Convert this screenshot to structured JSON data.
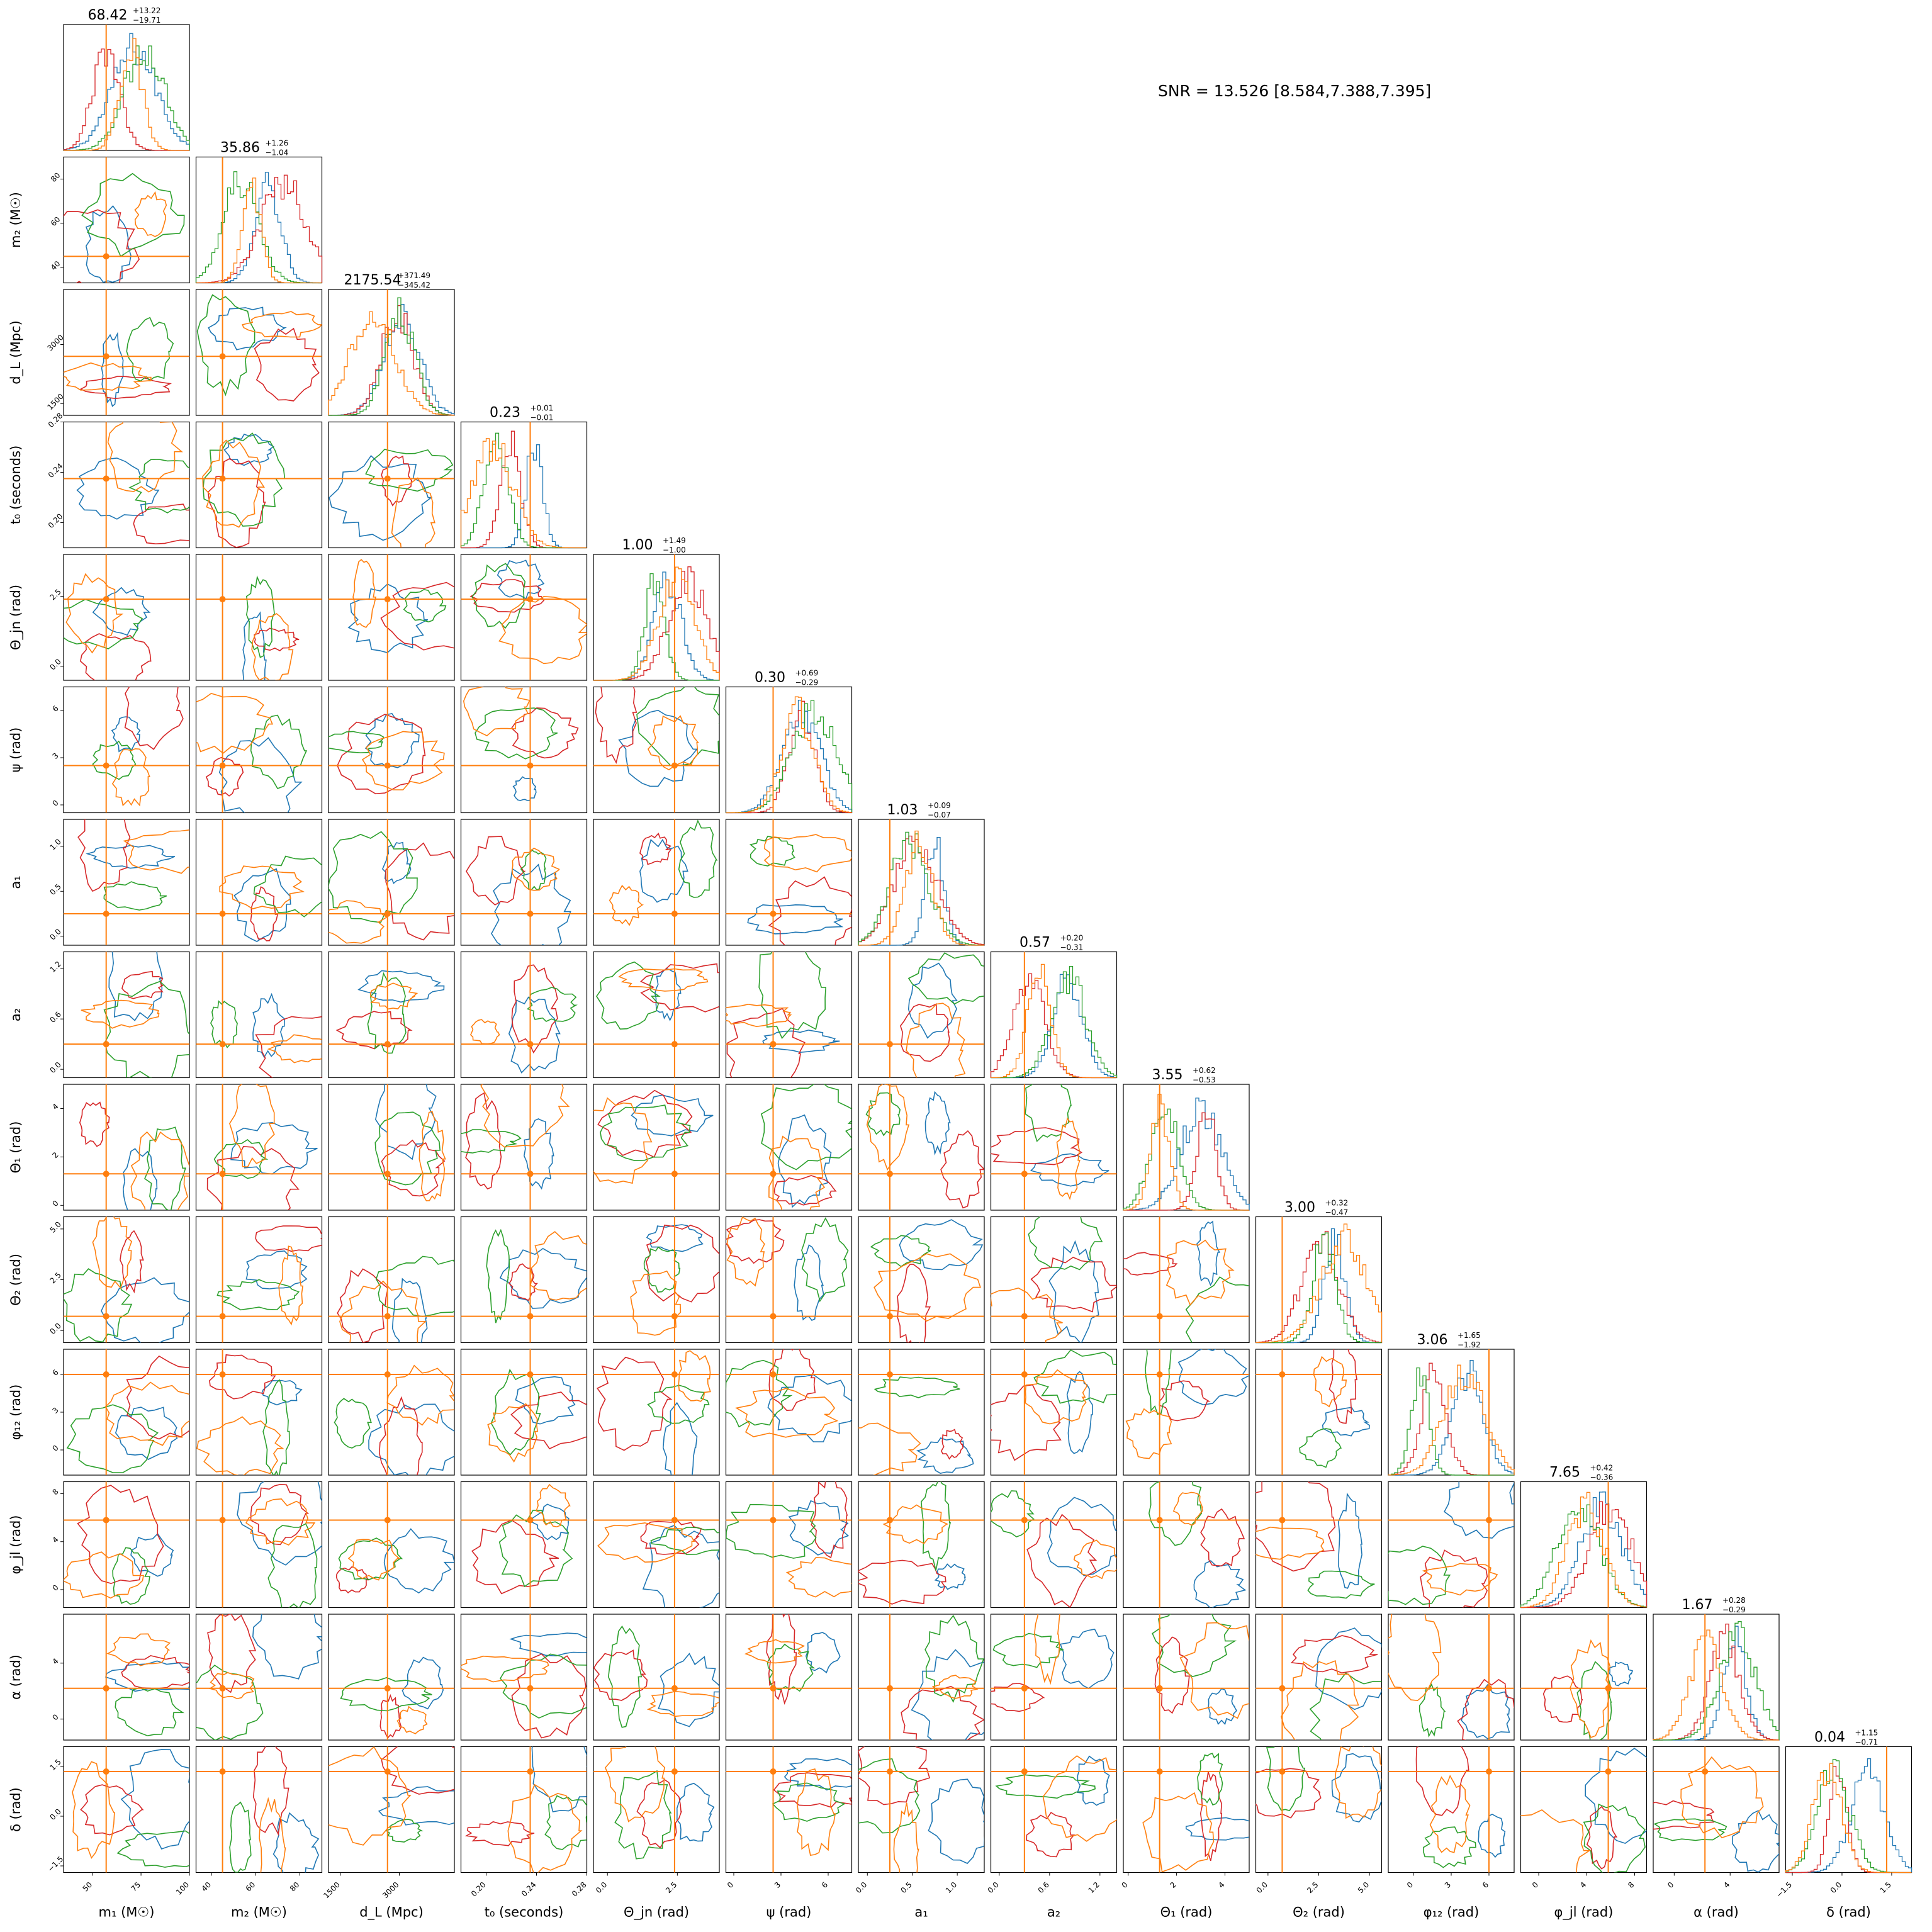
{
  "chart_data": {
    "type": "corner",
    "snr_text": "SNR = 13.526 [8.584,7.388,7.395]",
    "series_colors": [
      "#1f77b4",
      "#d62728",
      "#2ca02c",
      "#ff7f0e"
    ],
    "truth_color": "#ff7f0e",
    "parameters": [
      {
        "key": "m1",
        "label": "m₁ (M☉)",
        "range": [
          35,
          100
        ],
        "ticks": [
          50,
          75,
          100
        ],
        "ticklabels": [
          "50",
          "75",
          "100"
        ],
        "truth": 57,
        "title_value": "68.42",
        "title_plus": "+13.22",
        "title_minus": "−19.71"
      },
      {
        "key": "m2",
        "label": "m₂ (M☉)",
        "range": [
          33,
          90
        ],
        "ticks": [
          40,
          60,
          80
        ],
        "ticklabels": [
          "40",
          "60",
          "80"
        ],
        "truth": 45,
        "title_value": "35.86",
        "title_plus": "+1.26",
        "title_minus": "−1.04"
      },
      {
        "key": "dL",
        "label": "d_L (Mpc)",
        "range": [
          1200,
          4400
        ],
        "ticks": [
          1500,
          3000
        ],
        "ticklabels": [
          "1500",
          "3000"
        ],
        "truth": 2700,
        "title_value": "2175.54",
        "title_plus": "+371.49",
        "title_minus": "−345.42"
      },
      {
        "key": "t0",
        "label": "t₀ (seconds)",
        "range": [
          0.18,
          0.28
        ],
        "ticks": [
          0.2,
          0.24,
          0.28
        ],
        "ticklabels": [
          "0.20",
          "0.24",
          "0.28"
        ],
        "truth": 0.235,
        "title_value": "0.23",
        "title_plus": "+0.01",
        "title_minus": "−0.01"
      },
      {
        "key": "thetajn",
        "label": "Θ_jn (rad)",
        "range": [
          -0.5,
          4.0
        ],
        "ticks": [
          0.0,
          2.5
        ],
        "ticklabels": [
          "0.0",
          "2.5"
        ],
        "truth": 2.4,
        "title_value": "1.00",
        "title_plus": "+1.49",
        "title_minus": "−1.00"
      },
      {
        "key": "psi",
        "label": "ψ (rad)",
        "range": [
          -0.5,
          7.5
        ],
        "ticks": [
          0,
          3,
          6
        ],
        "ticklabels": [
          "0",
          "3",
          "6"
        ],
        "truth": 2.5,
        "title_value": "0.30",
        "title_plus": "+0.69",
        "title_minus": "−0.29"
      },
      {
        "key": "a1",
        "label": "a₁",
        "range": [
          -0.1,
          1.3
        ],
        "ticks": [
          0.0,
          0.5,
          1.0
        ],
        "ticklabels": [
          "0.0",
          "0.5",
          "1.0"
        ],
        "truth": 0.25,
        "title_value": "1.03",
        "title_plus": "+0.09",
        "title_minus": "−0.07"
      },
      {
        "key": "a2",
        "label": "a₂",
        "range": [
          -0.1,
          1.4
        ],
        "ticks": [
          0.0,
          0.6,
          1.2
        ],
        "ticklabels": [
          "0.0",
          "0.6",
          "1.2"
        ],
        "truth": 0.3,
        "title_value": "0.57",
        "title_plus": "+0.20",
        "title_minus": "−0.31"
      },
      {
        "key": "theta1",
        "label": "Θ₁ (rad)",
        "range": [
          -0.2,
          5.0
        ],
        "ticks": [
          0,
          2,
          4
        ],
        "ticklabels": [
          "0",
          "2",
          "4"
        ],
        "truth": 1.3,
        "title_value": "3.55",
        "title_plus": "+0.62",
        "title_minus": "−0.53"
      },
      {
        "key": "theta2",
        "label": "Θ₂ (rad)",
        "range": [
          -0.6,
          5.6
        ],
        "ticks": [
          0.0,
          2.5,
          5.0
        ],
        "ticklabels": [
          "0.0",
          "2.5",
          "5.0"
        ],
        "truth": 0.7,
        "title_value": "3.00",
        "title_plus": "+0.32",
        "title_minus": "−0.47"
      },
      {
        "key": "phi12",
        "label": "φ₁₂ (rad)",
        "range": [
          -2,
          8
        ],
        "ticks": [
          0,
          3,
          6
        ],
        "ticklabels": [
          "0",
          "3",
          "6"
        ],
        "truth": 6.0,
        "title_value": "3.06",
        "title_plus": "+1.65",
        "title_minus": "−1.92"
      },
      {
        "key": "phijl",
        "label": "φ_jl (rad)",
        "range": [
          -1.5,
          9
        ],
        "ticks": [
          0,
          4,
          8
        ],
        "ticklabels": [
          "0",
          "4",
          "8"
        ],
        "truth": 5.8,
        "title_value": "7.65",
        "title_plus": "+0.42",
        "title_minus": "−0.36"
      },
      {
        "key": "alpha",
        "label": "α (rad)",
        "range": [
          -1.5,
          7.5
        ],
        "ticks": [
          0,
          4
        ],
        "ticklabels": [
          "0",
          "4"
        ],
        "truth": 2.2,
        "title_value": "1.67",
        "title_plus": "+0.28",
        "title_minus": "−0.29"
      },
      {
        "key": "delta",
        "label": "δ (rad)",
        "range": [
          -1.7,
          2.1
        ],
        "ticks": [
          -1.5,
          0.0,
          1.5
        ],
        "ticklabels": [
          "−1.5",
          "0.0",
          "1.5"
        ],
        "truth": 1.35,
        "title_value": "0.04",
        "title_plus": "+1.15",
        "title_minus": "−0.71"
      }
    ]
  }
}
